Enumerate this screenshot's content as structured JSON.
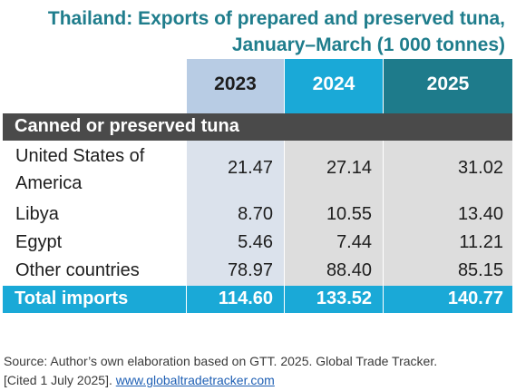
{
  "title": {
    "line1": "Thailand: Exports of prepared and preserved tuna,",
    "line2": "January–March (1 000 tonnes)"
  },
  "table": {
    "years": [
      "2023",
      "2024",
      "2025"
    ],
    "section": "Canned or preserved tuna",
    "rows": [
      {
        "label_line1": "United States of",
        "label_line2": "America",
        "values": [
          "21.47",
          "27.14",
          "31.02"
        ]
      },
      {
        "label": "Libya",
        "values": [
          "8.70",
          "10.55",
          "13.40"
        ]
      },
      {
        "label": "Egypt",
        "values": [
          "5.46",
          "7.44",
          "11.21"
        ]
      },
      {
        "label": "Other countries",
        "values": [
          "78.97",
          "88.40",
          "85.15"
        ]
      }
    ],
    "total": {
      "label": "Total imports",
      "values": [
        "114.60",
        "133.52",
        "140.77"
      ]
    }
  },
  "source": {
    "line1": "Source: Author’s own elaboration based on GTT. 2025. Global Trade Tracker.",
    "line2_prefix": "[Cited 1 July 2025]. ",
    "link": "www.globaltradetracker.com"
  },
  "colors": {
    "title": "#1f7d8c",
    "header_2023": "#b8cce4",
    "header_2024": "#1aa9d7",
    "header_2025": "#1e7b8b",
    "section_bg": "#4a4a4a",
    "total_bg": "#1aa9d7"
  }
}
